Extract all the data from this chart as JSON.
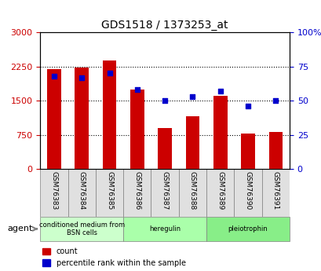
{
  "title": "GDS1518 / 1373253_at",
  "samples": [
    "GSM76383",
    "GSM76384",
    "GSM76385",
    "GSM76386",
    "GSM76387",
    "GSM76388",
    "GSM76389",
    "GSM76390",
    "GSM76391"
  ],
  "counts": [
    2200,
    2230,
    2380,
    1750,
    900,
    1150,
    1600,
    770,
    820
  ],
  "percentiles": [
    68,
    67,
    70,
    58,
    50,
    53,
    57,
    46,
    50
  ],
  "groups": [
    {
      "label": "conditioned medium from\nBSN cells",
      "start": 0,
      "end": 3,
      "color": "#ccffcc"
    },
    {
      "label": "heregulin",
      "start": 3,
      "end": 6,
      "color": "#aaffaa"
    },
    {
      "label": "pleiotrophin",
      "start": 6,
      "end": 9,
      "color": "#88ee88"
    }
  ],
  "ylim_left": [
    0,
    3000
  ],
  "ylim_right": [
    0,
    100
  ],
  "yticks_left": [
    0,
    750,
    1500,
    2250,
    3000
  ],
  "ytick_labels_left": [
    "0",
    "750",
    "1500",
    "2250",
    "3000"
  ],
  "yticks_right": [
    0,
    25,
    50,
    75,
    100
  ],
  "ytick_labels_right": [
    "0",
    "25",
    "50",
    "75",
    "100%"
  ],
  "bar_color": "#cc0000",
  "dot_color": "#0000cc",
  "grid_color": "#000000",
  "agent_label": "agent",
  "legend_count_label": "count",
  "legend_pct_label": "percentile rank within the sample"
}
